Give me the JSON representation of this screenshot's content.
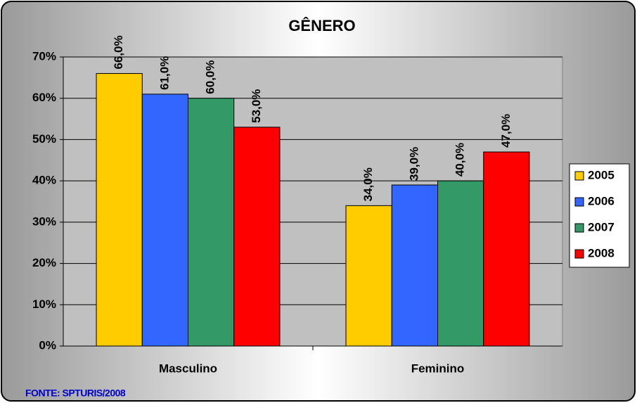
{
  "chart_data": {
    "type": "bar",
    "title": "GÊNERO",
    "categories": [
      "Masculino",
      "Feminino"
    ],
    "series": [
      {
        "name": "2005",
        "color": "#ffcc00",
        "values": [
          66,
          34
        ],
        "value_labels": [
          "66,0%",
          "34,0%"
        ]
      },
      {
        "name": "2006",
        "color": "#3366ff",
        "values": [
          61,
          39
        ],
        "value_labels": [
          "61,0%",
          "39,0%"
        ]
      },
      {
        "name": "2007",
        "color": "#339966",
        "values": [
          60,
          40
        ],
        "value_labels": [
          "60,0%",
          "40,0%"
        ]
      },
      {
        "name": "2008",
        "color": "#ff0000",
        "values": [
          53,
          47
        ],
        "value_labels": [
          "53,0%",
          "47,0%"
        ]
      }
    ],
    "ylim": [
      0,
      70
    ],
    "yticks": [
      {
        "value": 0,
        "label": "0%"
      },
      {
        "value": 10,
        "label": "10%"
      },
      {
        "value": 20,
        "label": "20%"
      },
      {
        "value": 30,
        "label": "30%"
      },
      {
        "value": 40,
        "label": "40%"
      },
      {
        "value": 50,
        "label": "50%"
      },
      {
        "value": 60,
        "label": "60%"
      },
      {
        "value": 70,
        "label": "70%"
      }
    ],
    "grid": true,
    "legend": "right",
    "source": "FONTE: SPTURIS/2008"
  }
}
